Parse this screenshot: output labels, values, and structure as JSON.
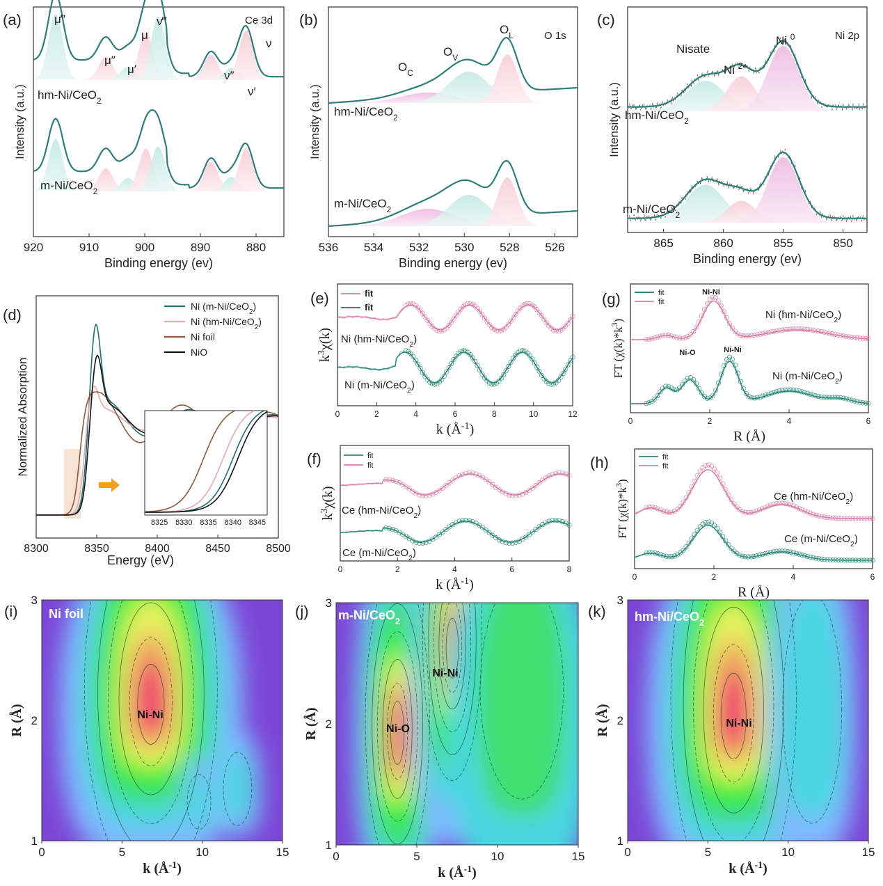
{
  "chart_data": [
    {
      "id": "a",
      "type": "line",
      "panel_label": "(a)",
      "title": "Ce 3d",
      "xlabel": "Binding energy (ev)",
      "ylabel": "Intensity (a.u.)",
      "xlim": [
        920,
        875
      ],
      "xticks": [
        920,
        910,
        900,
        890,
        880
      ],
      "peak_labels": [
        {
          "text": "μ‴",
          "x": 915.8
        },
        {
          "text": "μ″",
          "x": 906.8
        },
        {
          "text": "μ′",
          "x": 902.5
        },
        {
          "text": "μ",
          "x": 900.0
        },
        {
          "text": "ν‴",
          "x": 897.0
        },
        {
          "text": "ν″",
          "x": 887.8
        },
        {
          "text": "ν′",
          "x": 884.3
        },
        {
          "text": "ν",
          "x": 881.5
        }
      ],
      "peaks": [
        916.0,
        907.0,
        903.0,
        899.8,
        897.6,
        888.1,
        884.5,
        881.8
      ],
      "series": [
        {
          "name": "hm-Ni/CeO2",
          "heights": [
            1.0,
            0.35,
            0.2,
            0.72,
            0.95,
            0.38,
            0.18,
            0.75
          ]
        },
        {
          "name": "m-Ni/CeO2",
          "heights": [
            0.8,
            0.35,
            0.2,
            0.65,
            0.68,
            0.45,
            0.22,
            0.65
          ]
        }
      ]
    },
    {
      "id": "b",
      "type": "line",
      "panel_label": "(b)",
      "title": "O 1s",
      "xlabel": "Binding energy (ev)",
      "ylabel": "Intensity (a.u.)",
      "xlim": [
        536,
        525
      ],
      "xticks": [
        536,
        534,
        532,
        530,
        528,
        526
      ],
      "peak_labels": [
        {
          "text": "OC",
          "x": 532.0
        },
        {
          "text": "OV",
          "x": 529.7
        },
        {
          "text": "OL",
          "x": 528.0
        }
      ],
      "components": [
        {
          "name": "OC",
          "center": 531.6,
          "width": 1.2
        },
        {
          "name": "OV",
          "center": 529.8,
          "width": 0.9
        },
        {
          "name": "OL",
          "center": 528.1,
          "width": 0.45
        }
      ],
      "series": [
        {
          "name": "hm-Ni/CeO2",
          "heights": [
            0.15,
            0.45,
            0.7
          ]
        },
        {
          "name": "m-Ni/CeO2",
          "heights": [
            0.25,
            0.45,
            0.7
          ]
        }
      ]
    },
    {
      "id": "c",
      "type": "line",
      "panel_label": "(c)",
      "title": "Ni 2p",
      "xlabel": "Binding energy (ev)",
      "ylabel": "Intensity (a.u.)",
      "xlim": [
        868,
        848
      ],
      "xticks": [
        865,
        860,
        855,
        850
      ],
      "peak_labels": [
        {
          "text": "Nisate",
          "x": 862.0
        },
        {
          "text": "Ni 2+",
          "x": 859.0
        },
        {
          "text": "Ni 0",
          "x": 855.0
        }
      ],
      "components": [
        {
          "name": "Nisate",
          "center": 861.5,
          "width": 1.6
        },
        {
          "name": "Ni 2+",
          "center": 858.5,
          "width": 1.2
        },
        {
          "name": "Ni 0",
          "center": 855.0,
          "width": 1.3
        }
      ],
      "series": [
        {
          "name": "hm-Ni/CeO2",
          "heights": [
            0.42,
            0.48,
            0.9
          ]
        },
        {
          "name": "m-Ni/CeO2",
          "heights": [
            0.52,
            0.3,
            0.9
          ]
        }
      ]
    },
    {
      "id": "d",
      "type": "line",
      "panel_label": "(d)",
      "xlabel": "Energy (eV)",
      "ylabel": "Normalized Absorption",
      "xlim": [
        8300,
        8500
      ],
      "xticks": [
        8300,
        8350,
        8400,
        8450,
        8500
      ],
      "legend": [
        {
          "name": "Ni (m-Ni/CeO2)",
          "color": "#1f6f6f"
        },
        {
          "name": "Ni (hm-Ni/CeO2)",
          "color": "#e8a8b0"
        },
        {
          "name": "Ni foil",
          "color": "#8b5a3c"
        },
        {
          "name": "NiO",
          "color": "#111111"
        }
      ],
      "inset": {
        "xlim": [
          8322,
          8347
        ],
        "xticks": [
          8325,
          8330,
          8335,
          8340,
          8345
        ]
      }
    },
    {
      "id": "e",
      "type": "line",
      "panel_label": "(e)",
      "xlabel": "k (Å-1)",
      "ylabel": "k3χ(k)",
      "xlim": [
        0,
        12
      ],
      "xticks": [
        0,
        2,
        4,
        6,
        8,
        10,
        12
      ],
      "legend": [
        {
          "name": "fit",
          "color": "#e07a98"
        },
        {
          "name": "fit",
          "color": "#1f6f6f"
        }
      ],
      "series": [
        {
          "name": "Ni (hm-Ni/CeO2)",
          "color": "#d77fa8"
        },
        {
          "name": "Ni (m-Ni/CeO2)",
          "color": "#2a8a7a"
        }
      ]
    },
    {
      "id": "f",
      "type": "line",
      "panel_label": "(f)",
      "xlabel": "k (Å-1)",
      "ylabel": "k3χ(k)",
      "xlim": [
        0,
        8
      ],
      "xticks": [
        0,
        2,
        4,
        6,
        8
      ],
      "legend": [
        {
          "name": "fit",
          "color": "#2a8a7a"
        },
        {
          "name": "fit",
          "color": "#d77fa8"
        }
      ],
      "series": [
        {
          "name": "Ce (hm-Ni/CeO2)",
          "color": "#d77fa8"
        },
        {
          "name": "Ce (m-Ni/CeO2)",
          "color": "#2a8a7a"
        }
      ]
    },
    {
      "id": "g",
      "type": "line",
      "panel_label": "(g)",
      "xlabel": "R (Å)",
      "ylabel": "FT (χ(k)*k3)",
      "xlim": [
        0,
        6
      ],
      "xticks": [
        0,
        2,
        4,
        6
      ],
      "legend": [
        {
          "name": "fit",
          "color": "#1f6f6f"
        },
        {
          "name": "fit",
          "color": "#d77fa8"
        }
      ],
      "annotations": [
        {
          "text": "Ni-Ni",
          "x": 2.1
        },
        {
          "text": "Ni-O",
          "x": 1.5
        },
        {
          "text": "Ni-Ni",
          "x": 2.5
        }
      ],
      "series": [
        {
          "name": "Ni (hm-Ni/CeO2)",
          "color": "#d77fa8"
        },
        {
          "name": "Ni (m-Ni/CeO2)",
          "color": "#2a8a7a"
        }
      ]
    },
    {
      "id": "h",
      "type": "line",
      "panel_label": "(h)",
      "xlabel": "R (Å)",
      "ylabel": "FT (χ(k)*k3)",
      "xlim": [
        0,
        6
      ],
      "xticks": [
        0,
        2,
        4,
        6
      ],
      "legend": [
        {
          "name": "fit",
          "color": "#2a8a7a"
        },
        {
          "name": "fit",
          "color": "#d77fa8"
        }
      ],
      "series": [
        {
          "name": "Ce (hm-Ni/CeO2)",
          "color": "#d77fa8"
        },
        {
          "name": "Ce (m-Ni/CeO2)",
          "color": "#2a8a7a"
        }
      ]
    },
    {
      "id": "i",
      "type": "heatmap",
      "panel_label": "(i)",
      "title": "Ni foil",
      "annotation": "Ni-Ni",
      "xlabel": "k (Å-1)",
      "ylabel": "R (Å)",
      "xlim": [
        0,
        15
      ],
      "ylim": [
        1,
        3
      ],
      "xticks": [
        0,
        5,
        10,
        15
      ],
      "yticks": [
        1,
        2,
        3
      ]
    },
    {
      "id": "j",
      "type": "heatmap",
      "panel_label": "(j)",
      "title": "m-Ni/CeO2",
      "annotations": [
        "Ni-Ni",
        "Ni-O"
      ],
      "xlabel": "k (Å-1)",
      "ylabel": "R (Å)",
      "xlim": [
        0,
        15
      ],
      "ylim": [
        1,
        3
      ],
      "xticks": [
        0,
        5,
        10,
        15
      ],
      "yticks": [
        1,
        2,
        3
      ]
    },
    {
      "id": "k",
      "type": "heatmap",
      "panel_label": "(k)",
      "title": "hm-Ni/CeO2",
      "annotation": "Ni-Ni",
      "xlabel": "k (Å-1)",
      "ylabel": "R (Å)",
      "xlim": [
        0,
        15
      ],
      "ylim": [
        1,
        3
      ],
      "xticks": [
        0,
        5,
        10,
        15
      ],
      "yticks": [
        1,
        2,
        3
      ]
    }
  ]
}
